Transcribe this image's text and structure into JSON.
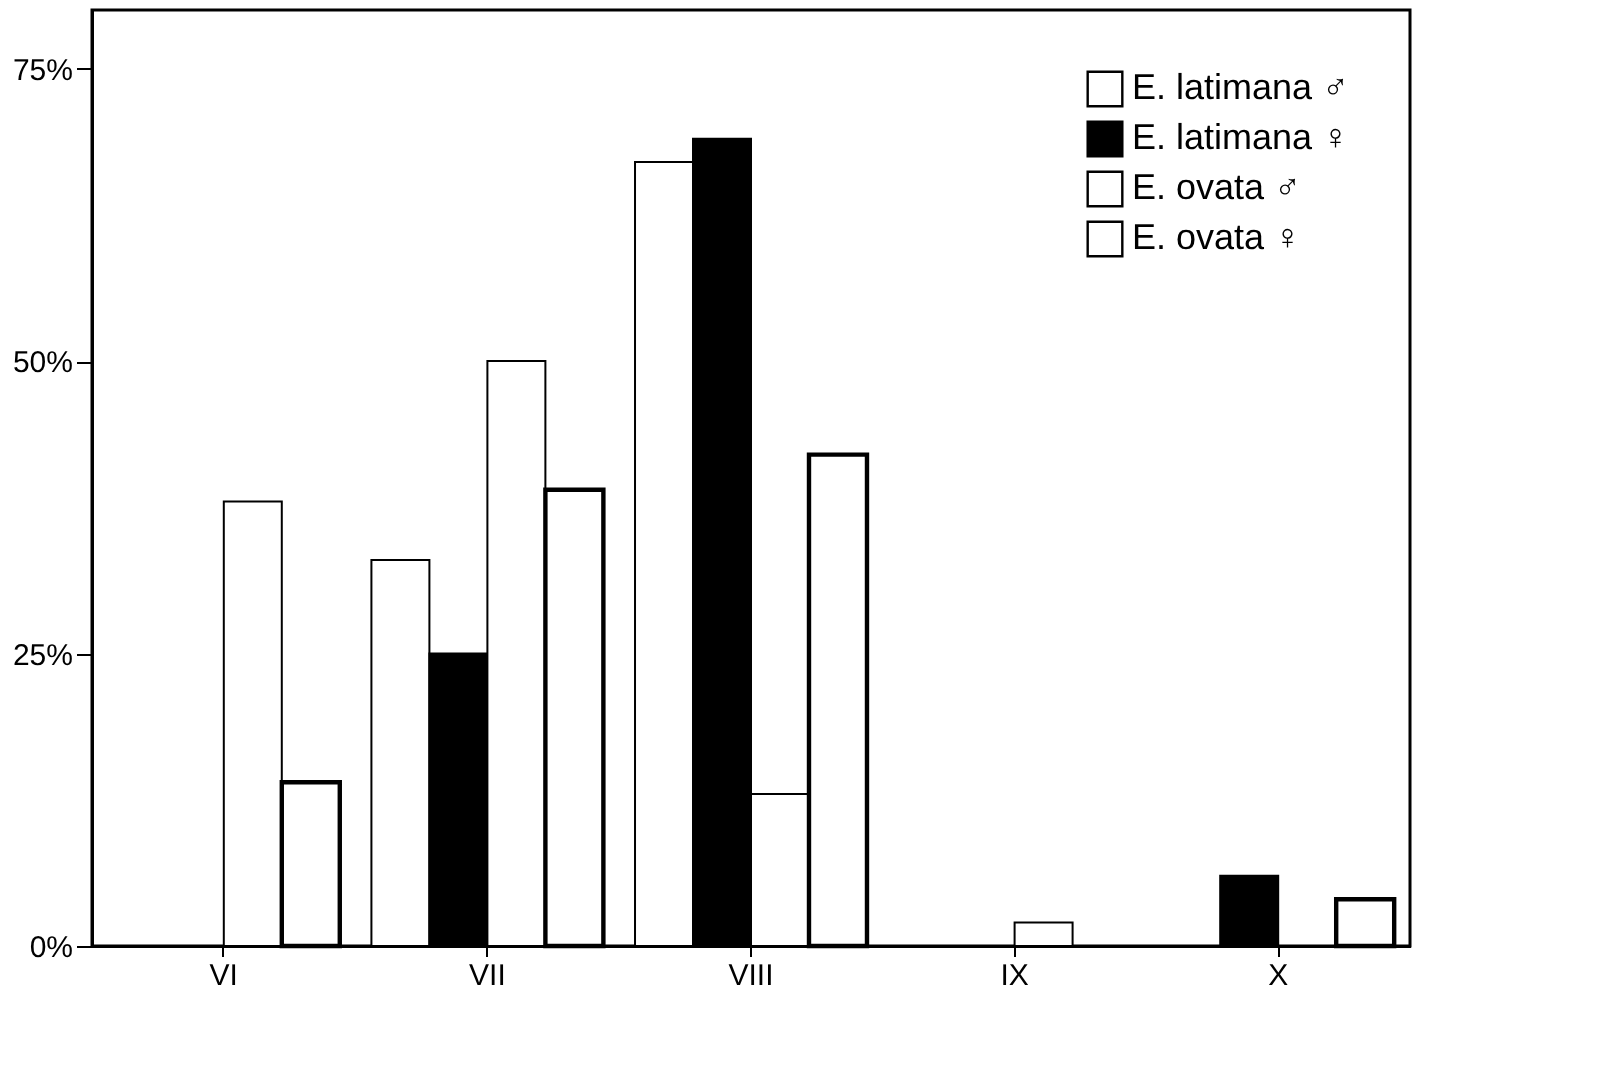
{
  "chart_data": {
    "type": "bar",
    "categories": [
      "VI",
      "VII",
      "VIII",
      "IX",
      "X"
    ],
    "series": [
      {
        "name": "E. latimana ♂",
        "color": "#ffffff",
        "values": [
          null,
          33,
          67,
          null,
          null
        ]
      },
      {
        "name": "E. latimana ♀",
        "color": "#000000",
        "values": [
          null,
          25,
          69,
          null,
          6
        ]
      },
      {
        "name": "E. ovata ♂",
        "color": "#ffffff",
        "values": [
          38,
          50,
          13,
          2,
          null
        ]
      },
      {
        "name": "E. ovata ♀",
        "color": "#ffffff",
        "values": [
          14,
          39,
          42,
          null,
          4
        ]
      }
    ],
    "ylim": [
      0,
      80
    ],
    "yticks": [
      {
        "value": 0,
        "label": "0%"
      },
      {
        "value": 25,
        "label": "25%"
      },
      {
        "value": 50,
        "label": "50%"
      },
      {
        "value": 75,
        "label": "75%"
      }
    ],
    "grid": false,
    "legend": "top right"
  }
}
